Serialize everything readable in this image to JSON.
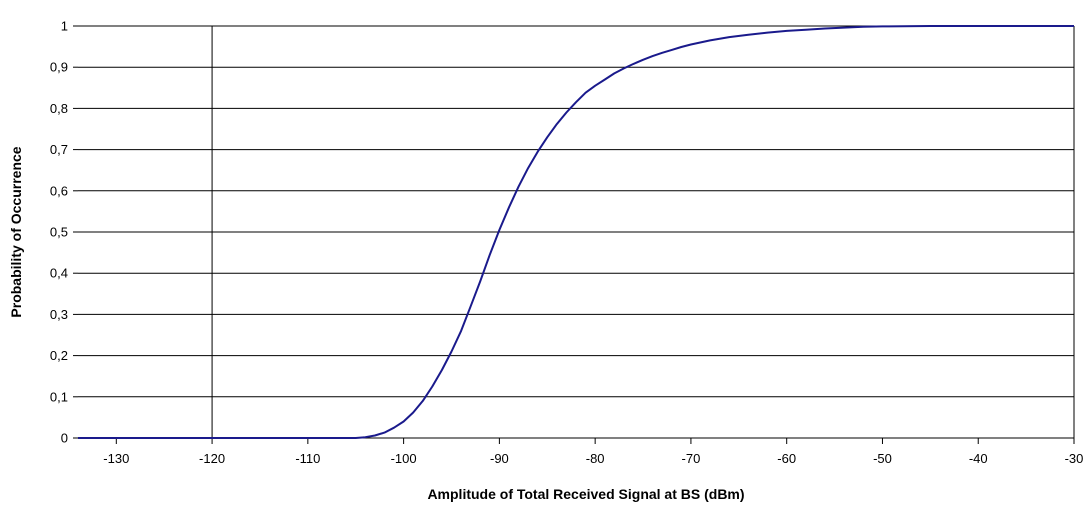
{
  "chart_data": {
    "type": "line",
    "title": "",
    "xlabel": "Amplitude of Total Received Signal at BS (dBm)",
    "ylabel": "Probability of Occurrence",
    "xlim": [
      -134,
      -30
    ],
    "ylim": [
      0,
      1
    ],
    "x_ticks": [
      -130,
      -120,
      -110,
      -100,
      -90,
      -80,
      -70,
      -60,
      -50,
      -40,
      -30
    ],
    "x_tick_labels": [
      "-130",
      "-120",
      "-110",
      "-100",
      "-90",
      "-80",
      "-70",
      "-60",
      "-50",
      "-40",
      "-30"
    ],
    "y_ticks": [
      0,
      0.1,
      0.2,
      0.3,
      0.4,
      0.5,
      0.6,
      0.7,
      0.8,
      0.9,
      1
    ],
    "y_tick_labels": [
      "0",
      "0,1",
      "0,2",
      "0,3",
      "0,4",
      "0,5",
      "0,6",
      "0,7",
      "0,8",
      "0,9",
      "1"
    ],
    "grid": "horizontal",
    "line_color": "#1a1a8c",
    "series": [
      {
        "x": [
          -134,
          -110,
          -105,
          -104,
          -103,
          -102,
          -101,
          -100,
          -99,
          -98,
          -97,
          -96,
          -95,
          -94,
          -93,
          -92,
          -91,
          -90,
          -89,
          -88,
          -87,
          -86,
          -85,
          -84,
          -83,
          -82,
          -81,
          -80,
          -79,
          -78,
          -77,
          -76,
          -75,
          -74,
          -73,
          -72,
          -71,
          -70,
          -68,
          -66,
          -64,
          -62,
          -60,
          -58,
          -56,
          -54,
          -52,
          -50,
          -45,
          -40,
          -35,
          -30
        ],
        "y": [
          0,
          0,
          0,
          0.002,
          0.006,
          0.013,
          0.025,
          0.04,
          0.062,
          0.09,
          0.125,
          0.165,
          0.21,
          0.26,
          0.32,
          0.38,
          0.445,
          0.505,
          0.56,
          0.61,
          0.655,
          0.695,
          0.73,
          0.762,
          0.79,
          0.815,
          0.838,
          0.855,
          0.87,
          0.885,
          0.897,
          0.908,
          0.918,
          0.927,
          0.935,
          0.942,
          0.949,
          0.955,
          0.965,
          0.973,
          0.979,
          0.984,
          0.988,
          0.991,
          0.994,
          0.996,
          0.998,
          0.999,
          1,
          1,
          1,
          1
        ]
      }
    ]
  }
}
